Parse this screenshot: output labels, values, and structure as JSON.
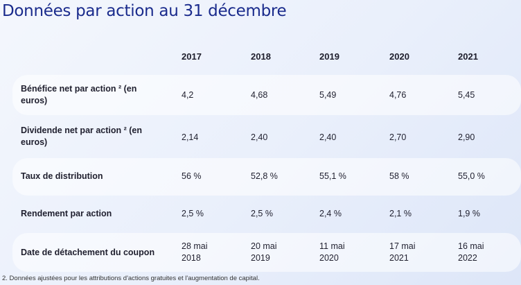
{
  "title": "Données par action au 31 décembre",
  "years": [
    "2017",
    "2018",
    "2019",
    "2020",
    "2021"
  ],
  "rows": [
    {
      "label_line1": "Bénéfice net par action ² (en",
      "label_line2": "euros)",
      "values": [
        "4,2",
        "4,68",
        "5,49",
        "4,76",
        "5,45"
      ]
    },
    {
      "label_line1": "Dividende net par action ² (en",
      "label_line2": "euros)",
      "values": [
        "2,14",
        "2,40",
        "2,40",
        "2,70",
        "2,90"
      ]
    },
    {
      "label_line1": "Taux de distribution",
      "values": [
        "56 %",
        "52,8 %",
        "55,1 %",
        "58 %",
        "55,0 %"
      ]
    },
    {
      "label_line1": "Rendement par action",
      "values": [
        "2,5 %",
        "2,5 %",
        "2,4 %",
        "2,1 %",
        "1,9 %"
      ]
    },
    {
      "label_line1": "Date de détachement du coupon",
      "values_line1": [
        "28 mai",
        "20 mai",
        "11 mai",
        "17 mai",
        "16 mai"
      ],
      "values_line2": [
        "2018",
        "2019",
        "2020",
        "2021",
        "2022"
      ]
    }
  ],
  "footnote": "2. Données ajustées pour les attributions d'actions gratuites et l'augmentation de capital."
}
